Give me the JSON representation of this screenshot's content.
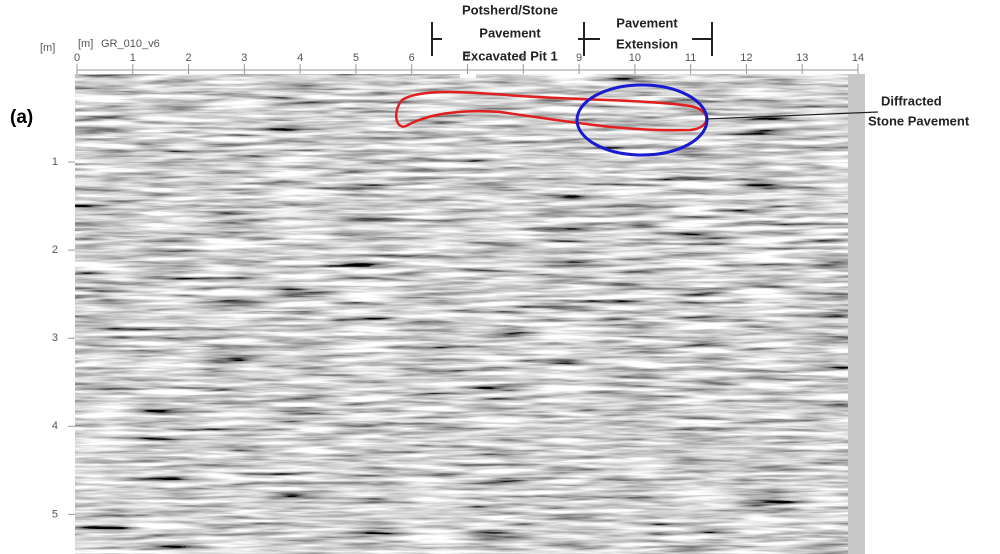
{
  "chart_data": {
    "type": "radargram",
    "panel_label": "(a)",
    "title": "GR_010_v6",
    "x_label": "[m]",
    "y_label": "[m]",
    "xlim": [
      0,
      14
    ],
    "ylim": [
      0,
      5.45
    ],
    "xticks": [
      0,
      1,
      2,
      3,
      4,
      5,
      6,
      7,
      8,
      9,
      10,
      11,
      12,
      13,
      14
    ],
    "yticks": [
      1,
      2,
      3,
      4,
      5
    ],
    "annotations": {
      "pit": [
        "Potsherd/Stone",
        "Pavement",
        "Excavated Pit 1"
      ],
      "extension": [
        "Pavement",
        "Extension"
      ],
      "diffracted": [
        "Diffracted",
        "Stone Pavement"
      ]
    }
  }
}
